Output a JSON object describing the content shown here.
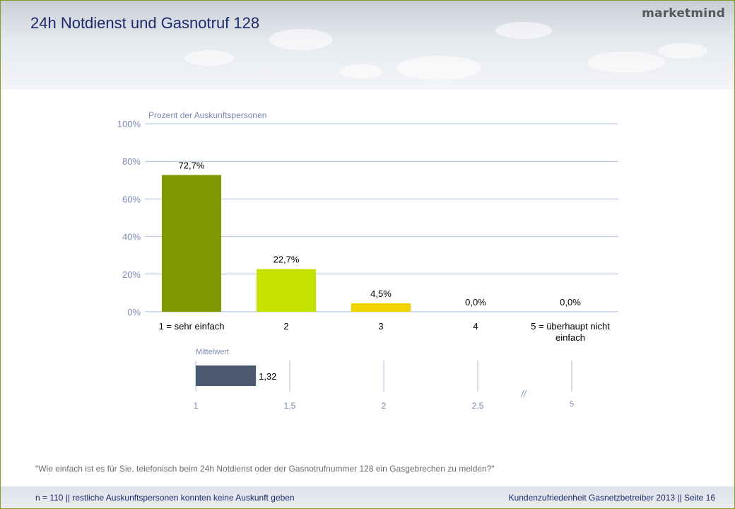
{
  "header": {
    "title": "24h Notdienst und Gasnotruf 128",
    "logo": "marketmind"
  },
  "chart_data": [
    {
      "type": "bar",
      "ylabel": "Prozent der Auskunftspersonen",
      "categories": [
        "1 = sehr einfach",
        "2",
        "3",
        "4",
        "5 = überhaupt nicht einfach"
      ],
      "values": [
        72.7,
        22.7,
        4.5,
        0.0,
        0.0
      ],
      "value_labels": [
        "72,7%",
        "22,7%",
        "4,5%",
        "0,0%",
        "0,0%"
      ],
      "colors": [
        "#7f9a00",
        "#c6e300",
        "#f2d500",
        "#cccccc",
        "#cccccc"
      ],
      "ylim": [
        0,
        100
      ],
      "y_ticks": [
        0,
        20,
        40,
        60,
        80,
        100
      ],
      "y_tick_labels": [
        "0%",
        "20%",
        "40%",
        "60%",
        "80%",
        "100%"
      ],
      "grid": true,
      "gridline_color": "#aebfd8"
    },
    {
      "type": "bar",
      "orientation": "horizontal",
      "title": "Mittelwert",
      "values": [
        1.32
      ],
      "value_labels": [
        "1,32"
      ],
      "colors": [
        "#4a5970"
      ],
      "xlim": [
        1,
        5
      ],
      "x_ticks": [
        1,
        1.5,
        2,
        2.5,
        5
      ],
      "x_tick_labels": [
        "1",
        "1,5",
        "2",
        "2,5",
        "5"
      ],
      "axis_break": "//",
      "tick_label_color": "#7b8ab6"
    }
  ],
  "question": "\"Wie einfach ist es für Sie, telefonisch beim 24h Notdienst oder der Gasnotrufnummer 128 ein Gasgebrechen zu melden?\"",
  "footer": {
    "left": "n = 110 || restliche Auskunftspersonen konnten keine Auskunft geben",
    "right": "Kundenzufriedenheit Gasnetzbetreiber 2013 || Seite 16"
  }
}
